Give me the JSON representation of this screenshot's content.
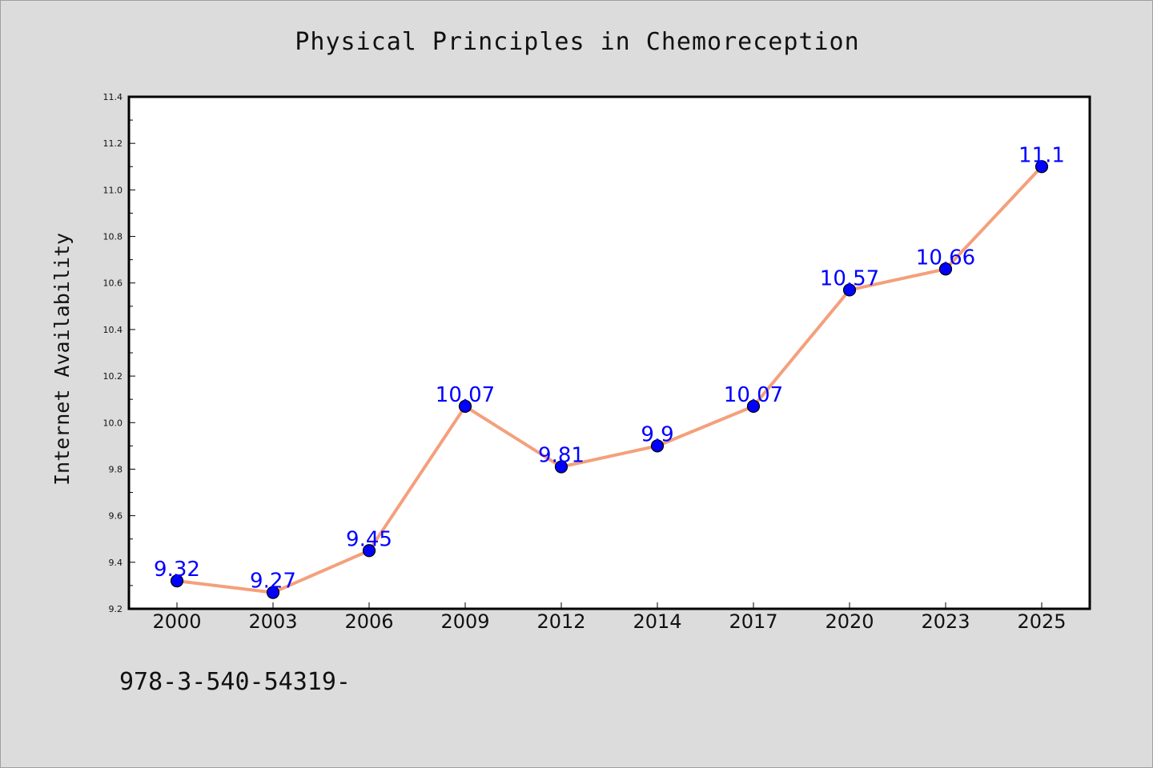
{
  "chart_data": {
    "type": "line",
    "title": "Physical Principles in Chemoreception",
    "xlabel": "",
    "ylabel": "Internet Availability",
    "categories": [
      "2000",
      "2003",
      "2006",
      "2009",
      "2012",
      "2014",
      "2017",
      "2020",
      "2023",
      "2025"
    ],
    "series": [
      {
        "values": [
          9.32,
          9.27,
          9.45,
          10.07,
          9.81,
          9.9,
          10.07,
          10.57,
          10.66,
          11.1
        ],
        "data_labels": [
          "9.32",
          "9.27",
          "9.45",
          "10.07",
          "9.81",
          "9.9",
          "10.07",
          "10.57",
          "10.66",
          "11.1"
        ],
        "line_color": "#f4a07c",
        "marker_color": "#0000ff"
      }
    ],
    "ylim": [
      9.2,
      11.4
    ],
    "yticks": [
      9.2,
      9.4,
      9.6,
      9.8,
      10.0,
      10.2,
      10.4,
      10.6,
      10.8,
      11.0,
      11.2,
      11.4
    ],
    "ytick_labels": [
      "9.2",
      "9.4",
      "9.6",
      "9.8",
      "10.0",
      "10.2",
      "10.4",
      "10.6",
      "10.8",
      "11.0",
      "11.2",
      "11.4"
    ],
    "grid": false,
    "legend": "none"
  },
  "footer": {
    "isbn": "978-3-540-54319-"
  },
  "colors": {
    "background": "#dcdcdc",
    "plot_background": "#ffffff",
    "line": "#f4a07c",
    "marker": "#0000ff",
    "data_label": "#0000ff"
  }
}
